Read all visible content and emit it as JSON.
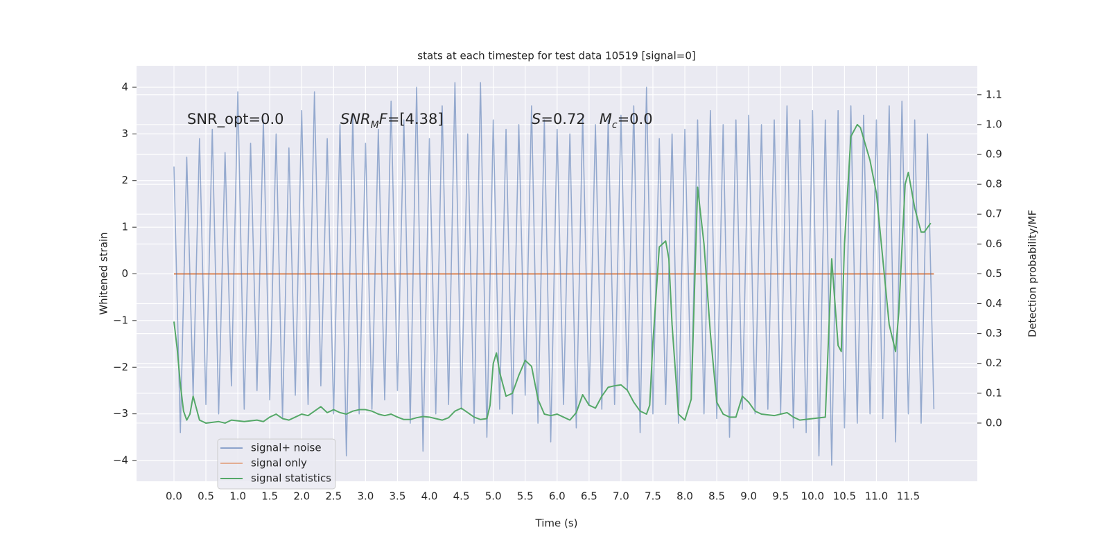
{
  "chart_data": {
    "type": "line",
    "title": "stats at each timestep for test data 10519 [signal=0]",
    "xlabel": "Time (s)",
    "ylabel": "Whitened strain",
    "y2label": "Detection probability/MF",
    "annotations": [
      [
        {
          "text": "SNR_opt=0.0",
          "style": "normal"
        }
      ],
      [
        {
          "text": "SNR",
          "style": "italic"
        },
        {
          "text": "M",
          "style": "sub"
        },
        {
          "text": "F",
          "style": "italic"
        },
        {
          "text": "=[4.38]",
          "style": "normal"
        }
      ],
      [
        {
          "text": "S",
          "style": "italic"
        },
        {
          "text": "=0.72   ",
          "style": "normal"
        },
        {
          "text": "M",
          "style": "italic"
        },
        {
          "text": "c",
          "style": "sub"
        },
        {
          "text": "=0.0",
          "style": "normal"
        }
      ]
    ],
    "x": [
      0,
      0.1,
      0.2,
      0.3,
      0.4,
      0.5,
      0.6,
      0.7,
      0.8,
      0.9,
      1,
      1.1,
      1.2,
      1.3,
      1.4,
      1.5,
      1.6,
      1.7,
      1.8,
      1.9,
      2,
      2.1,
      2.2,
      2.3,
      2.4,
      2.5,
      2.6,
      2.7,
      2.8,
      2.9,
      3,
      3.1,
      3.2,
      3.3,
      3.4,
      3.5,
      3.6,
      3.7,
      3.8,
      3.9,
      4,
      4.1,
      4.2,
      4.3,
      4.4,
      4.5,
      4.6,
      4.7,
      4.8,
      4.9,
      5,
      5.1,
      5.2,
      5.3,
      5.4,
      5.5,
      5.6,
      5.7,
      5.8,
      5.9,
      6,
      6.1,
      6.2,
      6.3,
      6.4,
      6.5,
      6.6,
      6.7,
      6.8,
      6.9,
      7,
      7.1,
      7.2,
      7.3,
      7.4,
      7.5,
      7.6,
      7.7,
      7.8,
      7.9,
      8,
      8.1,
      8.2,
      8.3,
      8.4,
      8.5,
      8.6,
      8.7,
      8.8,
      8.9,
      9,
      9.1,
      9.2,
      9.3,
      9.4,
      9.5,
      9.6,
      9.7,
      9.8,
      9.9,
      10,
      10.1,
      10.2,
      10.3,
      10.4,
      10.5,
      10.6,
      10.7,
      10.8,
      10.9,
      11,
      11.1,
      11.2,
      11.3,
      11.4,
      11.5,
      11.6,
      11.7,
      11.8,
      11.9
    ],
    "series": [
      {
        "name": "signal+ noise",
        "color": "#4c72b0",
        "values": [
          2.3,
          -3.4,
          2.5,
          -2.6,
          2.9,
          -2.8,
          3.1,
          -3.0,
          2.6,
          -2.4,
          3.9,
          -2.9,
          2.8,
          -2.5,
          3.3,
          -2.7,
          3.0,
          -3.1,
          2.7,
          -2.6,
          3.5,
          -2.8,
          3.9,
          -2.4,
          2.9,
          -3.0,
          3.2,
          -3.9,
          3.4,
          -3.0,
          2.8,
          -2.9,
          3.1,
          -2.7,
          3.7,
          -2.5,
          3.3,
          -3.2,
          4.0,
          -3.8,
          2.9,
          -3.0,
          3.6,
          -2.8,
          4.1,
          -2.9,
          3.0,
          -3.2,
          4.1,
          -3.5,
          3.3,
          -2.9,
          3.1,
          -3.0,
          3.2,
          -2.6,
          3.6,
          -3.2,
          3.3,
          -3.6,
          3.1,
          -2.8,
          3.0,
          -3.3,
          3.4,
          -2.8,
          3.2,
          -2.9,
          3.3,
          -2.8,
          3.4,
          -2.5,
          3.6,
          -3.4,
          4.0,
          -3.0,
          2.9,
          -2.8,
          3.0,
          -3.2,
          3.1,
          -2.7,
          3.3,
          -3.0,
          3.5,
          -3.1,
          3.2,
          -3.5,
          3.3,
          -2.9,
          3.4,
          -3.0,
          3.2,
          -2.9,
          3.3,
          -3.0,
          3.6,
          -3.3,
          3.3,
          -3.4,
          3.5,
          -3.9,
          3.3,
          -4.1,
          3.5,
          -3.3,
          3.6,
          -3.2,
          3.4,
          -3.0,
          3.3,
          -3.1,
          3.6,
          -3.6,
          3.7,
          -3.0,
          3.3,
          -3.2,
          3.0,
          -2.9
        ]
      },
      {
        "name": "signal only",
        "color": "#dd8452",
        "values": [
          0,
          0,
          0,
          0,
          0,
          0,
          0,
          0,
          0,
          0,
          0,
          0,
          0,
          0,
          0,
          0,
          0,
          0,
          0,
          0,
          0,
          0,
          0,
          0,
          0,
          0,
          0,
          0,
          0,
          0,
          0,
          0,
          0,
          0,
          0,
          0,
          0,
          0,
          0,
          0,
          0,
          0,
          0,
          0,
          0,
          0,
          0,
          0,
          0,
          0,
          0,
          0,
          0,
          0,
          0,
          0,
          0,
          0,
          0,
          0,
          0,
          0,
          0,
          0,
          0,
          0,
          0,
          0,
          0,
          0,
          0,
          0,
          0,
          0,
          0,
          0,
          0,
          0,
          0,
          0,
          0,
          0,
          0,
          0,
          0,
          0,
          0,
          0,
          0,
          0,
          0,
          0,
          0,
          0,
          0,
          0,
          0,
          0,
          0,
          0,
          0,
          0,
          0,
          0,
          0,
          0,
          0,
          0,
          0,
          0,
          0,
          0,
          0,
          0,
          0,
          0,
          0,
          0,
          0,
          0
        ]
      },
      {
        "name": "signal statistics",
        "color": "#55a868",
        "axis": "y2",
        "x": [
          0,
          0.05,
          0.1,
          0.15,
          0.2,
          0.25,
          0.3,
          0.35,
          0.4,
          0.5,
          0.7,
          0.8,
          0.9,
          1.1,
          1.3,
          1.4,
          1.5,
          1.6,
          1.7,
          1.8,
          1.9,
          2,
          2.1,
          2.2,
          2.3,
          2.4,
          2.5,
          2.6,
          2.7,
          2.8,
          2.9,
          3,
          3.1,
          3.2,
          3.3,
          3.4,
          3.5,
          3.6,
          3.7,
          3.8,
          3.9,
          4,
          4.1,
          4.2,
          4.3,
          4.4,
          4.5,
          4.6,
          4.7,
          4.8,
          4.9,
          4.95,
          5,
          5.05,
          5.1,
          5.2,
          5.3,
          5.4,
          5.5,
          5.6,
          5.7,
          5.8,
          5.9,
          6,
          6.1,
          6.2,
          6.3,
          6.4,
          6.5,
          6.6,
          6.7,
          6.8,
          6.9,
          7,
          7.1,
          7.2,
          7.3,
          7.4,
          7.45,
          7.5,
          7.6,
          7.7,
          7.75,
          7.8,
          7.9,
          8,
          8.1,
          8.2,
          8.3,
          8.4,
          8.5,
          8.6,
          8.7,
          8.8,
          8.9,
          9,
          9.1,
          9.2,
          9.4,
          9.6,
          9.7,
          9.8,
          10,
          10.2,
          10.3,
          10.4,
          10.45,
          10.5,
          10.6,
          10.7,
          10.75,
          10.9,
          11,
          11.2,
          11.3,
          11.35,
          11.45,
          11.5,
          11.6,
          11.7,
          11.75,
          11.85
        ],
        "values": [
          0.34,
          0.25,
          0.13,
          0.04,
          0.01,
          0.03,
          0.09,
          0.05,
          0.01,
          0,
          0.005,
          0,
          0.01,
          0.005,
          0.01,
          0.005,
          0.02,
          0.03,
          0.015,
          0.01,
          0.02,
          0.03,
          0.025,
          0.04,
          0.055,
          0.035,
          0.045,
          0.035,
          0.03,
          0.04,
          0.045,
          0.045,
          0.04,
          0.03,
          0.025,
          0.03,
          0.02,
          0.012,
          0.012,
          0.018,
          0.022,
          0.02,
          0.015,
          0.01,
          0.018,
          0.04,
          0.05,
          0.035,
          0.02,
          0.012,
          0.015,
          0.06,
          0.2,
          0.235,
          0.17,
          0.09,
          0.1,
          0.16,
          0.21,
          0.19,
          0.08,
          0.03,
          0.025,
          0.03,
          0.02,
          0.01,
          0.035,
          0.095,
          0.06,
          0.05,
          0.09,
          0.12,
          0.125,
          0.128,
          0.11,
          0.07,
          0.04,
          0.03,
          0.06,
          0.27,
          0.59,
          0.61,
          0.55,
          0.33,
          0.03,
          0.01,
          0.08,
          0.79,
          0.6,
          0.3,
          0.07,
          0.03,
          0.02,
          0.02,
          0.09,
          0.07,
          0.04,
          0.03,
          0.025,
          0.035,
          0.02,
          0.01,
          0.015,
          0.02,
          0.55,
          0.26,
          0.24,
          0.6,
          0.96,
          1.0,
          0.99,
          0.88,
          0.77,
          0.33,
          0.24,
          0.37,
          0.8,
          0.84,
          0.72,
          0.64,
          0.64,
          0.67
        ]
      }
    ],
    "xlim": [
      -0.586,
      12.58
    ],
    "ylim": [
      -4.445,
      4.46
    ],
    "y2lim": [
      -0.195,
      1.197
    ],
    "xticks": [
      {
        "value": 0,
        "label": "0.0"
      },
      {
        "value": 0.5,
        "label": "0.5"
      },
      {
        "value": 1,
        "label": "1.0"
      },
      {
        "value": 1.5,
        "label": "1.5"
      },
      {
        "value": 2,
        "label": "2.0"
      },
      {
        "value": 2.5,
        "label": "2.5"
      },
      {
        "value": 3,
        "label": "3.0"
      },
      {
        "value": 3.5,
        "label": "3.5"
      },
      {
        "value": 4,
        "label": "4.0"
      },
      {
        "value": 4.5,
        "label": "4.5"
      },
      {
        "value": 5,
        "label": "5.0"
      },
      {
        "value": 5.5,
        "label": "5.5"
      },
      {
        "value": 6,
        "label": "6.0"
      },
      {
        "value": 6.5,
        "label": "6.5"
      },
      {
        "value": 7,
        "label": "7.0"
      },
      {
        "value": 7.5,
        "label": "7.5"
      },
      {
        "value": 8,
        "label": "8.0"
      },
      {
        "value": 8.5,
        "label": "8.5"
      },
      {
        "value": 9,
        "label": "9.0"
      },
      {
        "value": 9.5,
        "label": "9.5"
      },
      {
        "value": 10,
        "label": "10.0"
      },
      {
        "value": 10.5,
        "label": "10.5"
      },
      {
        "value": 11,
        "label": "11.0"
      },
      {
        "value": 11.5,
        "label": "11.5"
      }
    ],
    "yticks": [
      {
        "value": -4,
        "label": "−4"
      },
      {
        "value": -3,
        "label": "−3"
      },
      {
        "value": -2,
        "label": "−2"
      },
      {
        "value": -1,
        "label": "−1"
      },
      0,
      1,
      2,
      3,
      4
    ],
    "y2ticks": [
      {
        "value": 0,
        "label": "0.0"
      },
      {
        "value": 0.1,
        "label": "0.1"
      },
      {
        "value": 0.2,
        "label": "0.2"
      },
      {
        "value": 0.3,
        "label": "0.3"
      },
      {
        "value": 0.4,
        "label": "0.4"
      },
      {
        "value": 0.5,
        "label": "0.5"
      },
      {
        "value": 0.6,
        "label": "0.6"
      },
      {
        "value": 0.7,
        "label": "0.7"
      },
      {
        "value": 0.8,
        "label": "0.8"
      },
      {
        "value": 0.9,
        "label": "0.9"
      },
      {
        "value": 1,
        "label": "1.0"
      },
      {
        "value": 1.1,
        "label": "1.1"
      }
    ],
    "grid": true,
    "legend": "lower left",
    "background": "#eaeaf2"
  }
}
